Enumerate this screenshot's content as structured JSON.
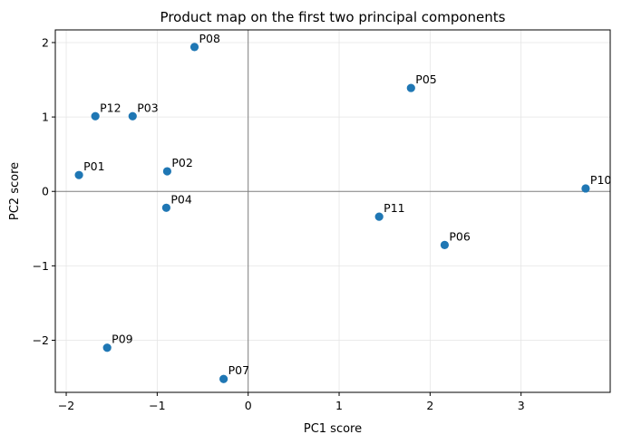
{
  "chart_data": {
    "type": "scatter",
    "title": "Product map on the first two principal components",
    "xlabel": "PC1 score",
    "ylabel": "PC2 score",
    "xlim": [
      -2.12,
      3.98
    ],
    "ylim": [
      -2.7,
      2.17
    ],
    "xticks": [
      -2,
      -1,
      0,
      1,
      2,
      3
    ],
    "yticks": [
      -2,
      -1,
      0,
      1,
      2
    ],
    "xtick_labels": [
      "−2",
      "−1",
      "0",
      "1",
      "2",
      "3"
    ],
    "ytick_labels": [
      "−2",
      "−1",
      "0",
      "1",
      "2"
    ],
    "grid": true,
    "reference_lines": {
      "x": 0,
      "y": 0
    },
    "marker_color": "#1f77b4",
    "points": [
      {
        "label": "P01",
        "x": -1.86,
        "y": 0.22
      },
      {
        "label": "P02",
        "x": -0.89,
        "y": 0.27
      },
      {
        "label": "P03",
        "x": -1.27,
        "y": 1.01
      },
      {
        "label": "P04",
        "x": -0.9,
        "y": -0.22
      },
      {
        "label": "P05",
        "x": 1.79,
        "y": 1.39
      },
      {
        "label": "P06",
        "x": 2.16,
        "y": -0.72
      },
      {
        "label": "P07",
        "x": -0.27,
        "y": -2.52
      },
      {
        "label": "P08",
        "x": -0.59,
        "y": 1.94
      },
      {
        "label": "P09",
        "x": -1.55,
        "y": -2.1
      },
      {
        "label": "P10",
        "x": 3.71,
        "y": 0.04
      },
      {
        "label": "P11",
        "x": 1.44,
        "y": -0.34
      },
      {
        "label": "P12",
        "x": -1.68,
        "y": 1.01
      }
    ]
  }
}
